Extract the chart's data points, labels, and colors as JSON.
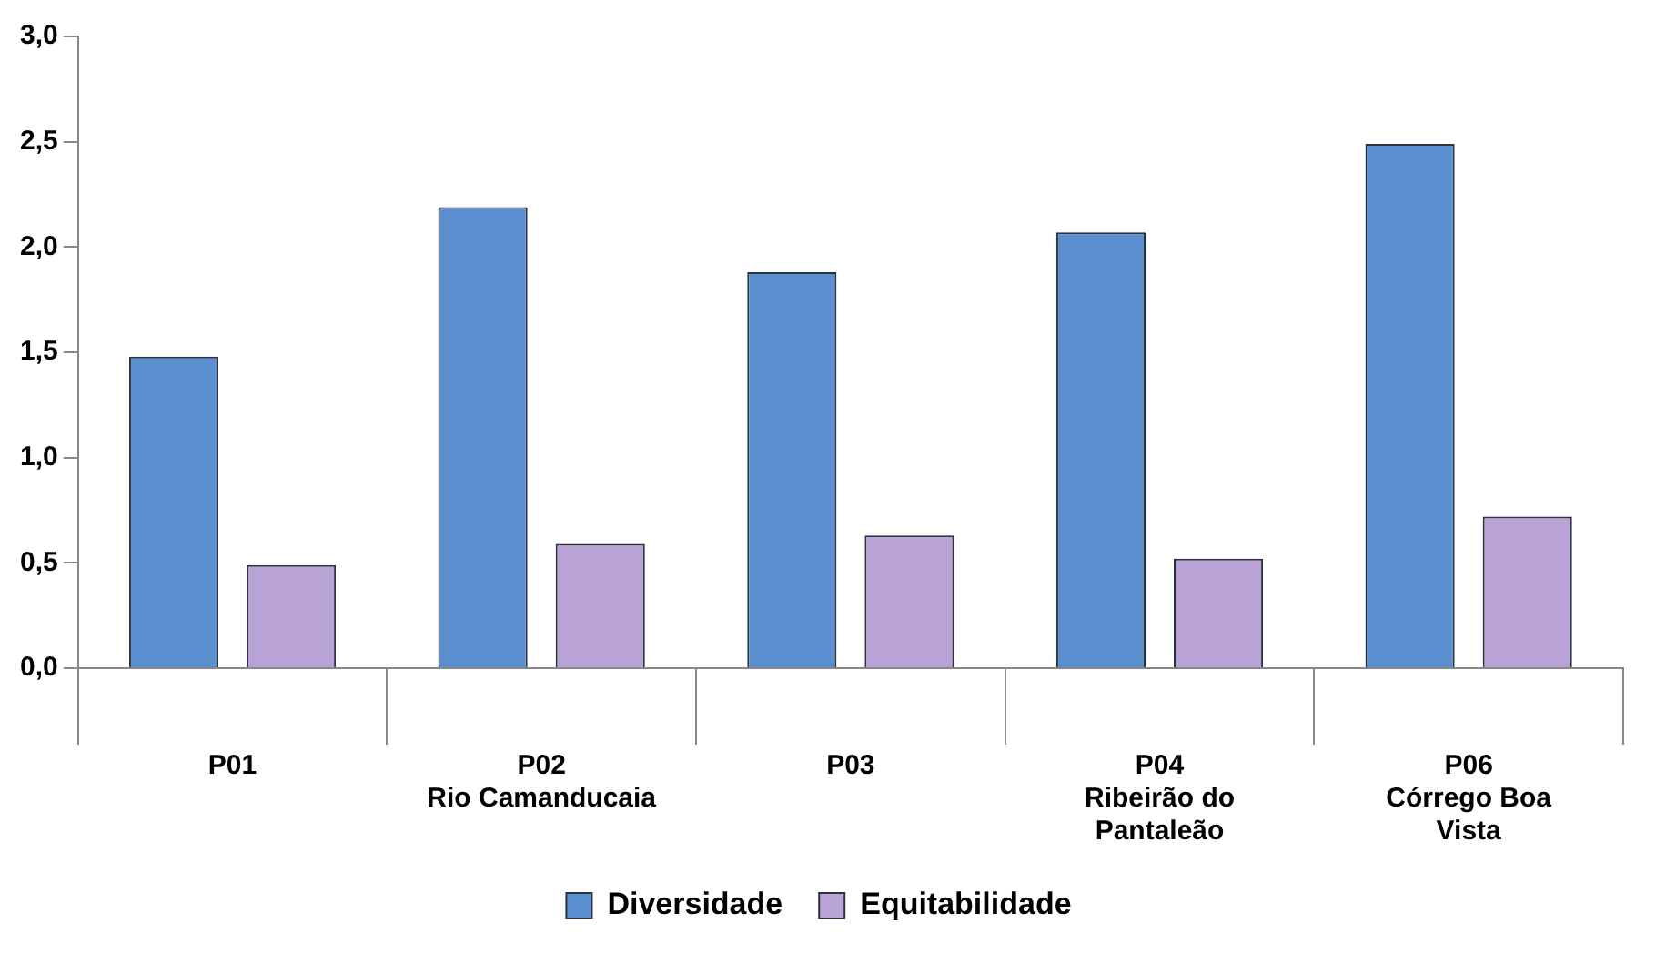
{
  "chart_data": {
    "type": "bar",
    "categories": [
      "P01",
      "P02\nRio Camanducaia",
      "P03",
      "P04\nRibeirão do\nPantaleão",
      "P06\nCórrego Boa\nVista"
    ],
    "series": [
      {
        "name": "Diversidade",
        "color": "#5b8fcf",
        "values": [
          1.48,
          2.19,
          1.88,
          2.07,
          2.49
        ]
      },
      {
        "name": "Equitabilidade",
        "color": "#b9a3d6",
        "values": [
          0.49,
          0.59,
          0.63,
          0.52,
          0.72
        ]
      }
    ],
    "ylim": [
      0,
      3
    ],
    "yticks": [
      {
        "value": 0,
        "label": "0,0"
      },
      {
        "value": 0.5,
        "label": "0,5"
      },
      {
        "value": 1,
        "label": "1,0"
      },
      {
        "value": 1.5,
        "label": "1,5"
      },
      {
        "value": 2,
        "label": "2,0"
      },
      {
        "value": 2.5,
        "label": "2,5"
      },
      {
        "value": 3,
        "label": "3,0"
      }
    ],
    "grid": false,
    "legend": "bottom"
  }
}
